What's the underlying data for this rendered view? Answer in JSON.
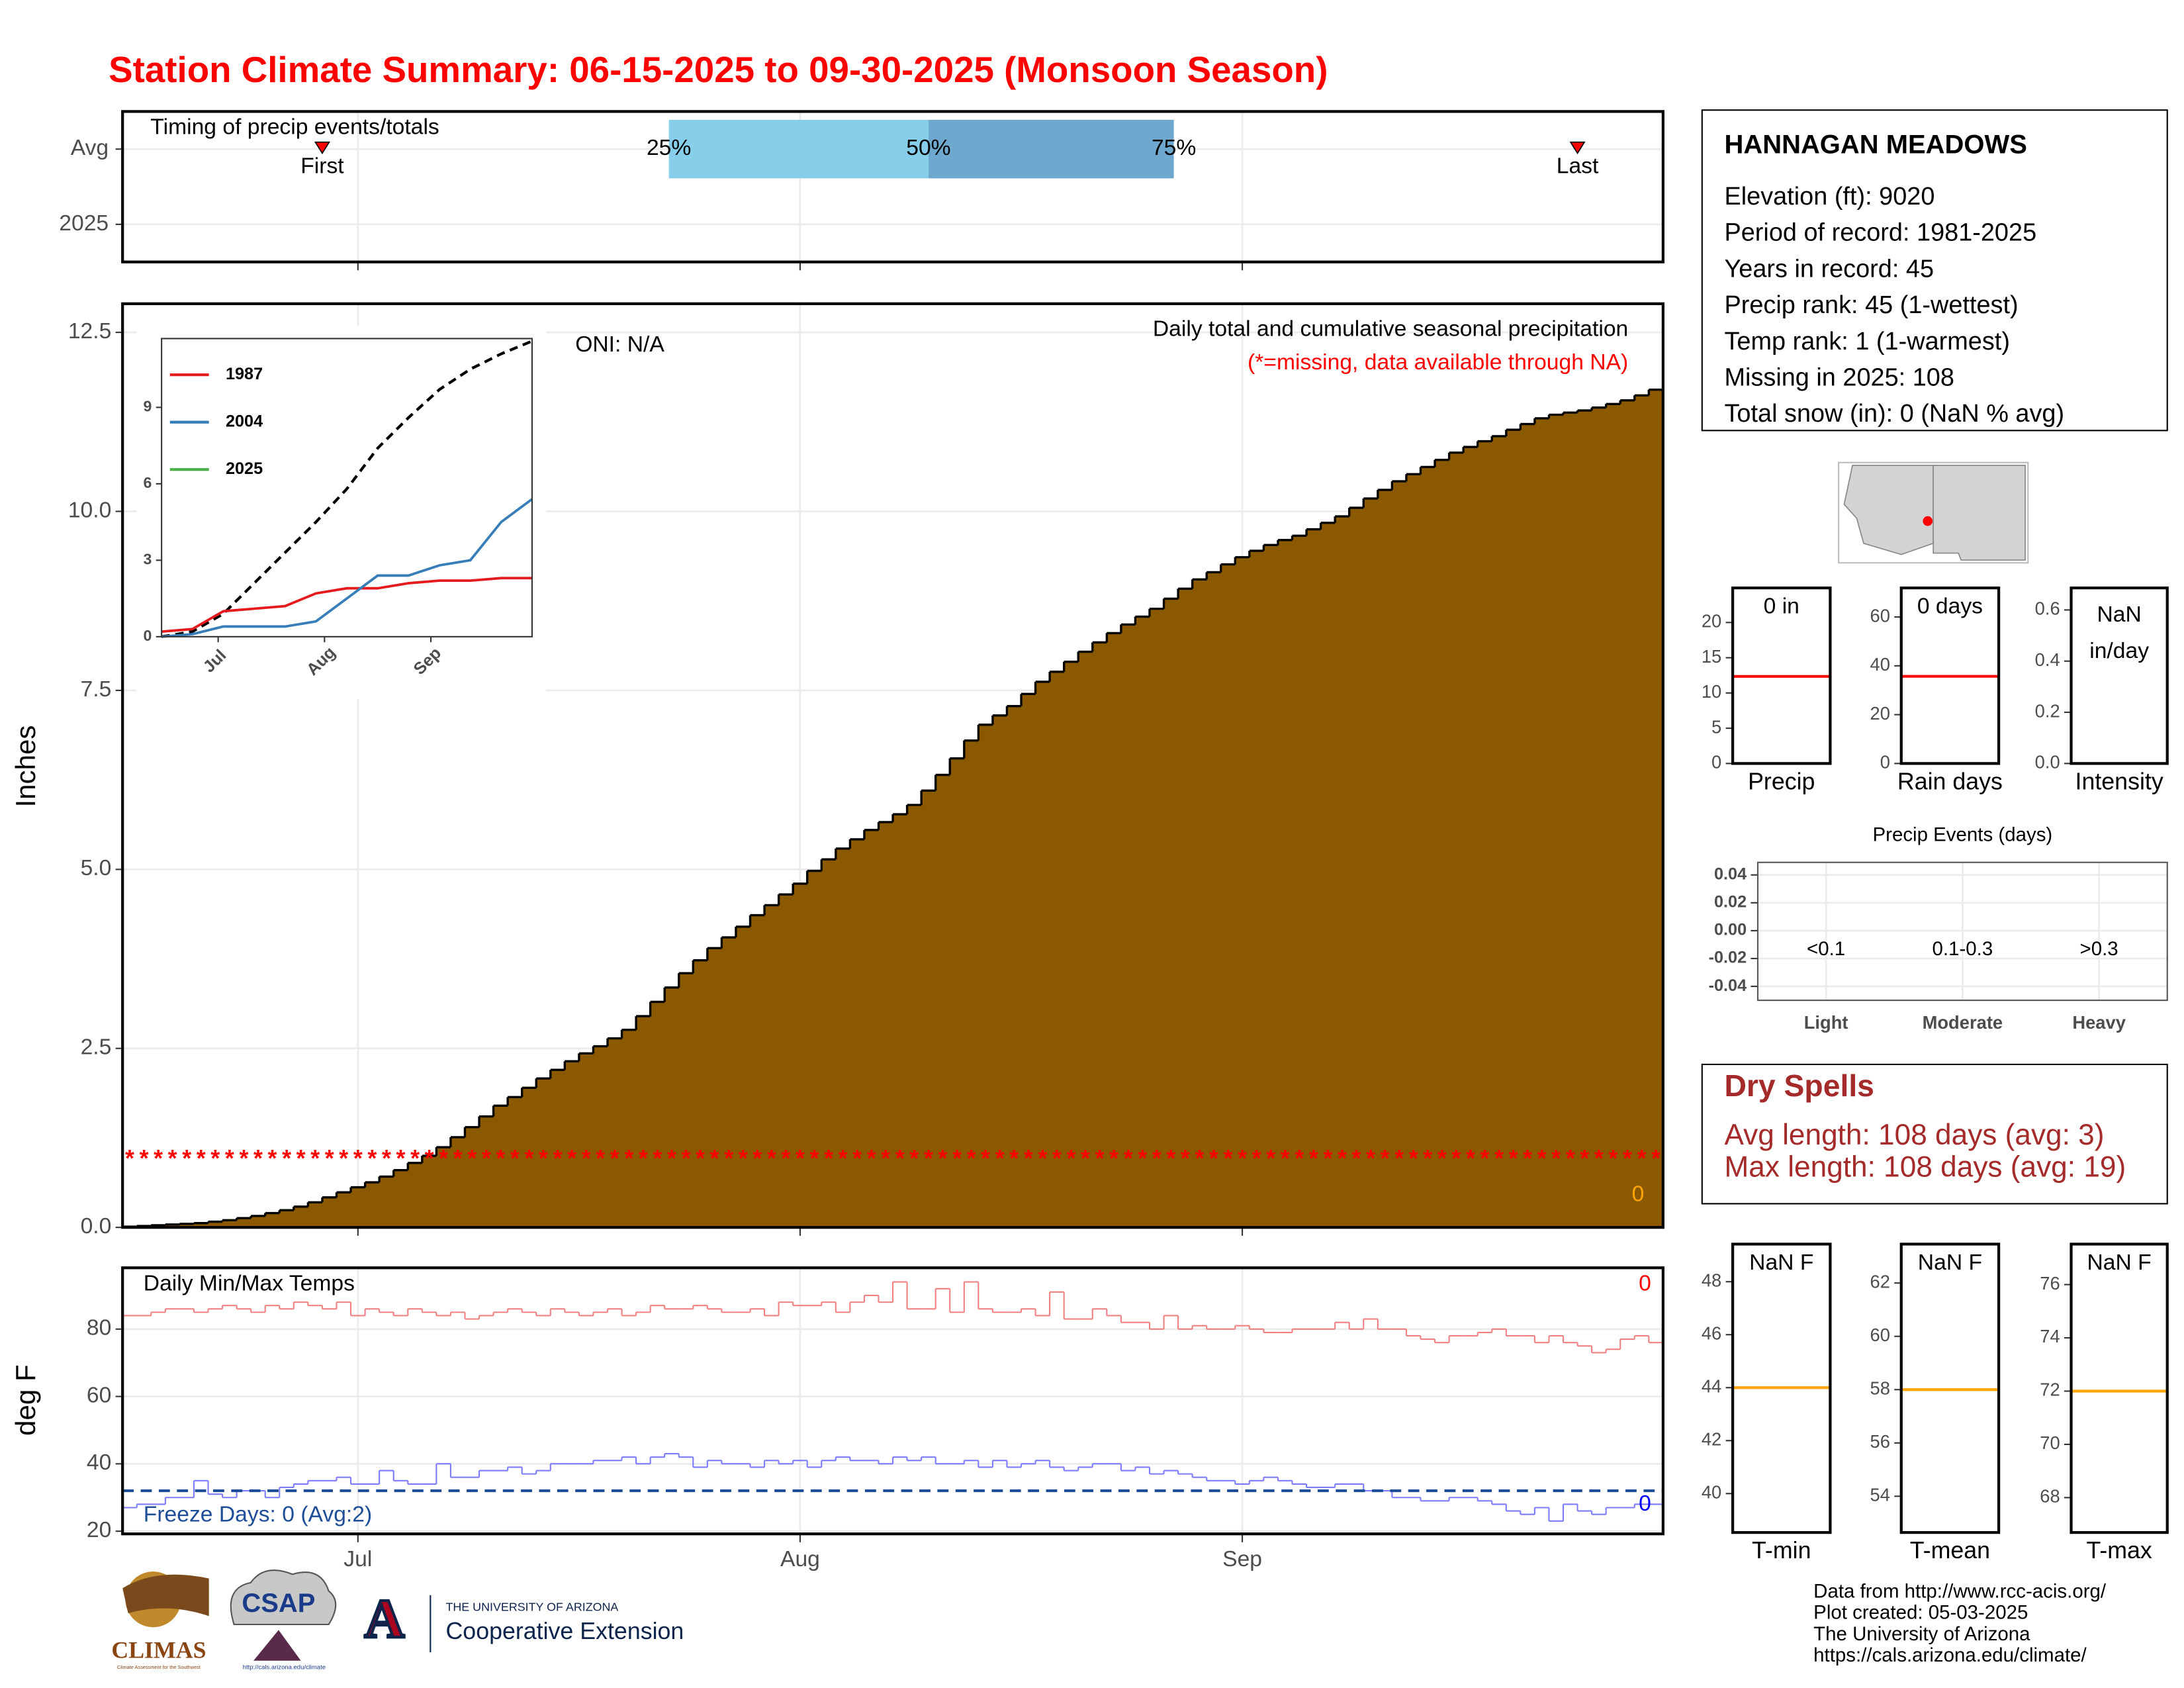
{
  "title": "Station Climate Summary: 06-15-2025 to 09-30-2025 (Monsoon Season)",
  "chart_data": [
    {
      "type": "timing",
      "title": "Timing of precip events/totals",
      "categories": [
        "Avg",
        "2025"
      ],
      "xlim": [
        0,
        108
      ],
      "quartiles": [
        {
          "value": 38.3,
          "label": "25%"
        },
        {
          "value": 56.5,
          "label": "50%"
        },
        {
          "value": 73.7,
          "label": "75%"
        }
      ],
      "quartile_colors": [
        "#87ceeb",
        "#6fa8cf"
      ],
      "markers": [
        {
          "value": 14,
          "label": "First"
        },
        {
          "value": 102,
          "label": "Last"
        }
      ],
      "marker_color": "#ff0000"
    },
    {
      "type": "step-area",
      "title": "Daily total and cumulative seasonal precipitation",
      "subtitle": "(*=missing, data available through NA)",
      "annotation": "ONI: N/A",
      "ylabel": "Inches",
      "color": "#8b5a00",
      "total": 0,
      "xlim": [
        0,
        108
      ],
      "ylim": [
        0,
        12.9
      ],
      "yticks": [
        {
          "value": 0,
          "label": "0.0"
        },
        2.5,
        {
          "value": 5,
          "label": "5.0"
        },
        7.5,
        {
          "value": 10,
          "label": "10.0"
        },
        12.5
      ],
      "grid": true,
      "x": [
        0,
        1,
        2,
        3,
        4,
        5,
        6,
        7,
        8,
        9,
        10,
        11,
        12,
        13,
        14,
        15,
        16,
        17,
        18,
        19,
        20,
        21,
        22,
        23,
        24,
        25,
        26,
        27,
        28,
        29,
        30,
        31,
        32,
        33,
        34,
        35,
        36,
        37,
        38,
        39,
        40,
        41,
        42,
        43,
        44,
        45,
        46,
        47,
        48,
        49,
        50,
        51,
        52,
        53,
        54,
        55,
        56,
        57,
        58,
        59,
        60,
        61,
        62,
        63,
        64,
        65,
        66,
        67,
        68,
        69,
        70,
        71,
        72,
        73,
        74,
        75,
        76,
        77,
        78,
        79,
        80,
        81,
        82,
        83,
        84,
        85,
        86,
        87,
        88,
        89,
        90,
        91,
        92,
        93,
        94,
        95,
        96,
        97,
        98,
        99,
        100,
        101,
        102,
        103,
        104,
        105,
        106,
        107
      ],
      "values": [
        0.01,
        0.02,
        0.03,
        0.04,
        0.05,
        0.06,
        0.08,
        0.1,
        0.13,
        0.16,
        0.2,
        0.24,
        0.29,
        0.35,
        0.42,
        0.49,
        0.56,
        0.63,
        0.71,
        0.8,
        0.9,
        1.0,
        1.12,
        1.26,
        1.4,
        1.55,
        1.7,
        1.82,
        1.95,
        2.08,
        2.2,
        2.32,
        2.43,
        2.53,
        2.64,
        2.76,
        2.95,
        3.15,
        3.35,
        3.55,
        3.73,
        3.9,
        4.05,
        4.2,
        4.36,
        4.5,
        4.65,
        4.8,
        4.98,
        5.14,
        5.29,
        5.42,
        5.55,
        5.66,
        5.77,
        5.9,
        6.1,
        6.32,
        6.55,
        6.8,
        7.02,
        7.15,
        7.28,
        7.45,
        7.62,
        7.76,
        7.9,
        8.04,
        8.17,
        8.3,
        8.42,
        8.53,
        8.64,
        8.78,
        8.92,
        9.05,
        9.15,
        9.26,
        9.36,
        9.45,
        9.53,
        9.6,
        9.66,
        9.75,
        9.84,
        9.93,
        10.05,
        10.18,
        10.3,
        10.42,
        10.52,
        10.62,
        10.72,
        10.82,
        10.9,
        10.98,
        11.05,
        11.14,
        11.22,
        11.3,
        11.35,
        11.38,
        11.41,
        11.45,
        11.5,
        11.55,
        11.62,
        11.7
      ],
      "missing": {
        "symbol": "*",
        "color": "#ff0000",
        "values": [
          1,
          1,
          1,
          1,
          1,
          1,
          1,
          1,
          1,
          1,
          1,
          1,
          1,
          1,
          1,
          1,
          1,
          1,
          1,
          1,
          1,
          1,
          1,
          1,
          1,
          1,
          1,
          1,
          1,
          1,
          1,
          1,
          1,
          1,
          1,
          1,
          1,
          1,
          1,
          1,
          1,
          1,
          1,
          1,
          1,
          1,
          1,
          1,
          1,
          1,
          1,
          1,
          1,
          1,
          1,
          1,
          1,
          1,
          1,
          1,
          1,
          1,
          1,
          1,
          1,
          1,
          1,
          1,
          1,
          1,
          1,
          1,
          1,
          1,
          1,
          1,
          1,
          1,
          1,
          1,
          1,
          1,
          1,
          1,
          1,
          1,
          1,
          1,
          1,
          1,
          1,
          1,
          1,
          1,
          1,
          1,
          1,
          1,
          1,
          1,
          1,
          1,
          1,
          1,
          1,
          1,
          1,
          1
        ]
      }
    },
    {
      "type": "line",
      "xlim": [
        0,
        108
      ],
      "ylim": [
        0,
        11.7
      ],
      "yticks": [
        0,
        3,
        6,
        9
      ],
      "xticks": [
        {
          "value": 16.5,
          "label": "Jul"
        },
        {
          "value": 47.5,
          "label": "Aug"
        },
        {
          "value": 78.5,
          "label": "Sep"
        }
      ],
      "x": [
        0,
        9,
        18,
        27,
        36,
        45,
        54,
        63,
        72,
        81,
        90,
        99,
        108
      ],
      "series": [
        {
          "color": "#000000",
          "dash": true,
          "values": [
            0,
            0.2,
            0.9,
            2.1,
            3.3,
            4.5,
            5.8,
            7.4,
            8.6,
            9.7,
            10.5,
            11.1,
            11.6
          ]
        },
        {
          "name": "1987",
          "color": "#e41a1c",
          "values": [
            0.2,
            0.3,
            1.0,
            1.1,
            1.2,
            1.7,
            1.9,
            1.9,
            2.1,
            2.2,
            2.2,
            2.3,
            2.3
          ]
        },
        {
          "name": "2004",
          "color": "#377eb8",
          "values": [
            0,
            0.1,
            0.4,
            0.4,
            0.4,
            0.6,
            1.5,
            2.4,
            2.4,
            2.8,
            3.0,
            4.5,
            5.4
          ]
        },
        {
          "name": "2025",
          "color": "#4daf4a",
          "values": [
            null,
            null,
            null,
            null,
            null,
            null,
            null,
            null,
            null,
            null,
            null,
            null,
            null
          ]
        }
      ]
    },
    {
      "type": "step-line",
      "title": "Daily Min/Max Temps",
      "ylabel": "deg F",
      "xlim": [
        0,
        108
      ],
      "ylim": [
        19.2,
        98.2
      ],
      "yticks": [
        20,
        40,
        60,
        80
      ],
      "grid": true,
      "xticks": [
        {
          "value": 16.5,
          "label": "Jul"
        },
        {
          "value": 47.5,
          "label": "Aug"
        },
        {
          "value": 78.5,
          "label": "Sep"
        }
      ],
      "freeze_line": 32,
      "freeze_color": "#1f4e99",
      "freeze_label": "Freeze Days: 0 (Avg:2)",
      "max_count": 0,
      "min_count": 0,
      "x": [
        0,
        1,
        2,
        3,
        4,
        5,
        6,
        7,
        8,
        9,
        10,
        11,
        12,
        13,
        14,
        15,
        16,
        17,
        18,
        19,
        20,
        21,
        22,
        23,
        24,
        25,
        26,
        27,
        28,
        29,
        30,
        31,
        32,
        33,
        34,
        35,
        36,
        37,
        38,
        39,
        40,
        41,
        42,
        43,
        44,
        45,
        46,
        47,
        48,
        49,
        50,
        51,
        52,
        53,
        54,
        55,
        56,
        57,
        58,
        59,
        60,
        61,
        62,
        63,
        64,
        65,
        66,
        67,
        68,
        69,
        70,
        71,
        72,
        73,
        74,
        75,
        76,
        77,
        78,
        79,
        80,
        81,
        82,
        83,
        84,
        85,
        86,
        87,
        88,
        89,
        90,
        91,
        92,
        93,
        94,
        95,
        96,
        97,
        98,
        99,
        100,
        101,
        102,
        103,
        104,
        105,
        106,
        107
      ],
      "series": [
        {
          "color": "#f08080",
          "values": [
            84,
            84,
            85,
            86,
            86,
            85,
            86,
            87,
            86,
            85,
            87,
            86,
            88,
            87,
            86,
            88,
            84,
            86,
            85,
            84,
            86,
            85,
            84,
            85,
            83,
            84,
            85,
            86,
            85,
            84,
            86,
            85,
            84,
            85,
            86,
            84,
            85,
            87,
            86,
            86,
            87,
            86,
            85,
            85,
            86,
            84,
            88,
            87,
            87,
            88,
            85,
            88,
            90,
            88,
            94,
            86,
            86,
            92,
            85,
            94,
            86,
            85,
            85,
            86,
            84,
            91,
            83,
            83,
            86,
            84,
            82,
            82,
            80,
            84,
            80,
            81,
            80,
            80,
            81,
            80,
            79,
            79,
            80,
            80,
            80,
            82,
            80,
            83,
            80,
            80,
            78,
            77,
            76,
            78,
            78,
            79,
            80,
            78,
            78,
            76,
            78,
            76,
            75,
            73,
            74,
            77,
            78,
            76
          ]
        },
        {
          "color": "#7b7bff",
          "values": [
            27,
            28,
            28,
            30,
            30,
            35,
            31,
            30,
            32,
            32,
            30,
            33,
            34,
            35,
            35,
            36,
            34,
            34,
            38,
            35,
            34,
            34,
            40,
            36,
            36,
            38,
            38,
            39,
            37,
            38,
            40,
            40,
            40,
            41,
            41,
            42,
            40,
            42,
            43,
            42,
            39,
            41,
            40,
            40,
            39,
            41,
            40,
            41,
            39,
            41,
            42,
            41,
            41,
            40,
            42,
            41,
            42,
            40,
            40,
            41,
            39,
            41,
            39,
            40,
            41,
            39,
            38,
            39,
            40,
            40,
            38,
            39,
            37,
            38,
            37,
            36,
            35,
            35,
            34,
            35,
            36,
            35,
            34,
            33,
            33,
            34,
            34,
            32,
            32,
            30,
            30,
            29,
            29,
            30,
            30,
            29,
            28,
            26,
            25,
            27,
            23,
            28,
            26,
            25,
            27,
            27,
            28,
            28
          ]
        }
      ]
    },
    {
      "type": "summary-box",
      "label": [
        "0 in"
      ],
      "xlabel": "Precip",
      "ylim": [
        0,
        24.9
      ],
      "yticks": [
        0,
        5,
        10,
        15,
        20
      ],
      "values": [
        12.35
      ],
      "color": "#ff0000"
    },
    {
      "type": "summary-box",
      "label": [
        "0 days"
      ],
      "xlabel": "Rain days",
      "ylim": [
        0,
        71.9
      ],
      "yticks": [
        0,
        20,
        40,
        60
      ],
      "values": [
        35.7
      ],
      "color": "#ff0000"
    },
    {
      "type": "summary-box",
      "label": [
        "NaN",
        "in/day"
      ],
      "xlabel": "Intensity",
      "ylim": [
        0,
        0.686
      ],
      "yticks": [
        {
          "value": 0,
          "label": "0.0"
        },
        0.2,
        0.4,
        0.6
      ],
      "values": [],
      "color": "#ff0000"
    },
    {
      "type": "bar",
      "title": "Precip Events (days)",
      "categories": [
        "Light",
        "Moderate",
        "Heavy"
      ],
      "sublabels": [
        "<0.1",
        "0.1-0.3",
        ">0.3"
      ],
      "values": [
        0,
        0,
        0
      ],
      "color": "#000000",
      "ylim": [
        -0.05,
        0.049
      ],
      "yticks": [
        {
          "value": 0.04,
          "label": "0.04"
        },
        {
          "value": 0.02,
          "label": "0.02"
        },
        {
          "value": 0,
          "label": "0.00"
        },
        {
          "value": -0.02,
          "label": "-0.02"
        },
        {
          "value": -0.04,
          "label": "-0.04"
        }
      ],
      "grid": true
    },
    {
      "type": "summary-box",
      "label": [
        "NaN F"
      ],
      "xlabel": "T-min",
      "ylim": [
        38.53,
        49.42
      ],
      "yticks": [
        40,
        42,
        44,
        46,
        48
      ],
      "values": [
        44
      ],
      "color": "#ffa500"
    },
    {
      "type": "summary-box",
      "label": [
        "NaN F"
      ],
      "xlabel": "T-mean",
      "ylim": [
        52.64,
        63.46
      ],
      "yticks": [
        54,
        56,
        58,
        60,
        62
      ],
      "values": [
        58
      ],
      "color": "#ffa500"
    },
    {
      "type": "summary-box",
      "label": [
        "NaN F"
      ],
      "xlabel": "T-max",
      "ylim": [
        66.69,
        77.52
      ],
      "yticks": [
        68,
        70,
        72,
        74,
        76
      ],
      "values": [
        72
      ],
      "color": "#ffa500"
    }
  ],
  "station": {
    "name": "HANNAGAN MEADOWS",
    "lines": [
      "Elevation (ft): 9020",
      "Period of record: 1981-2025",
      "Years in record: 45",
      "Precip rank: 45 (1-wettest)",
      "Temp rank: 1 (1-warmest)",
      "Missing in 2025: 108",
      "Total snow (in): 0 (NaN % avg)"
    ]
  },
  "dry_spells": {
    "title": "Dry Spells",
    "lines": [
      "Avg length: 108 days (avg: 3)",
      "Max length: 108 days (avg: 19)"
    ]
  },
  "credits": [
    "Data from http://www.rcc-acis.org/",
    "Plot created: 05-03-2025",
    "The University of Arizona",
    "https://cals.arizona.edu/climate/"
  ],
  "logos": {
    "climas": "CLIMAS",
    "climas_sub": "Climate Assessment for the Southwest",
    "csap": "CSAP",
    "csap_url": "http://cals.arizona.edu/climate",
    "ua_top": "THE UNIVERSITY OF ARIZONA",
    "ua_bottom": "Cooperative Extension"
  }
}
